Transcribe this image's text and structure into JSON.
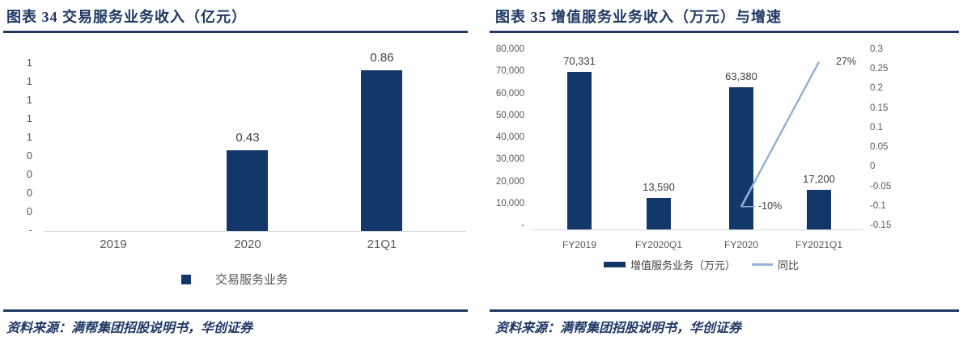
{
  "colors": {
    "navy_bar": "#12386B",
    "title_navy": "#1F3864",
    "line_blue": "#94B1D7",
    "axis_gray_text": "#595959",
    "value_label_gray": "#404040",
    "baseline_gray": "#D9D9D9"
  },
  "left_panel": {
    "title": "图表 34  交易服务业务收入（亿元）",
    "legend_label": "交易服务业务",
    "source": "资料来源：满帮集团招股说明书，华创证券"
  },
  "right_panel": {
    "title": "图表 35  增值服务业务收入（万元）与增速",
    "legend_bar_label": "增值服务业务（万元）",
    "legend_line_label": "同比",
    "source": "资料来源：满帮集团招股说明书，华创证券"
  },
  "chart_data": [
    {
      "type": "bar",
      "title": "图表 34  交易服务业务收入（亿元）",
      "categories": [
        "2019",
        "2020",
        "21Q1"
      ],
      "values": [
        0,
        0.43,
        0.86
      ],
      "data_labels": [
        "",
        "0.43",
        "0.86"
      ],
      "ylim": [
        0,
        0.9
      ],
      "y_tick_labels": [
        "1",
        "1",
        "1",
        "1",
        "1",
        "0",
        "0",
        "0",
        "0",
        "-"
      ],
      "legend": [
        "交易服务业务"
      ],
      "legend_position": "bottom",
      "grid": false
    },
    {
      "type": "bar+line",
      "title": "图表 35  增值服务业务收入（万元）与增速",
      "categories": [
        "FY2019",
        "FY2020Q1",
        "FY2020",
        "FY2021Q1"
      ],
      "series": [
        {
          "name": "增值服务业务（万元）",
          "type": "bar",
          "axis": "left",
          "values": [
            70331,
            13590,
            63380,
            17200
          ],
          "data_labels": [
            "70,331",
            "13,590",
            "63,380",
            "17,200"
          ]
        },
        {
          "name": "同比",
          "type": "line",
          "axis": "right",
          "values": [
            null,
            null,
            -0.1,
            0.27
          ],
          "data_labels": [
            "",
            "",
            "-10%",
            "27%"
          ]
        }
      ],
      "left_ylim": [
        0,
        80000
      ],
      "left_tick_labels": [
        "80,000",
        "70,000",
        "60,000",
        "50,000",
        "40,000",
        "30,000",
        "20,000",
        "10,000",
        "-"
      ],
      "right_ylim": [
        -0.15,
        0.3
      ],
      "right_tick_labels": [
        "0.3",
        "0.25",
        "0.2",
        "0.15",
        "0.1",
        "0.05",
        "0",
        "-0.05",
        "-0.1",
        "-0.15"
      ],
      "legend_position": "bottom",
      "grid": false
    }
  ]
}
